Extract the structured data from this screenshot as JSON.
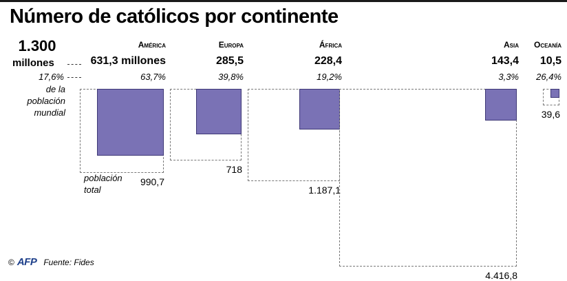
{
  "title": "Número de católicos por continente",
  "total": {
    "value": "1.300",
    "unit": "millones",
    "pct_world": "17,6%",
    "pct_note": [
      "de la",
      "población",
      "mundial"
    ]
  },
  "pop_label": [
    "población",
    "total"
  ],
  "footer": {
    "copyright": "©",
    "logo": "AFP",
    "source": "Fuente: Fides"
  },
  "colors": {
    "catholic_fill": "#7a72b5",
    "catholic_border": "#3d3775",
    "population_border": "#777777"
  },
  "chart_data": {
    "type": "area",
    "title": "Número de católicos por continente",
    "unit": "millones",
    "categories": [
      "América",
      "Europa",
      "África",
      "Asia",
      "Oceanía"
    ],
    "series": [
      {
        "name": "católicos",
        "values": [
          631.3,
          285.5,
          228.4,
          143.4,
          10.5
        ]
      },
      {
        "name": "población total",
        "values": [
          990.7,
          718,
          1187.1,
          4416.8,
          39.6
        ]
      },
      {
        "name": "% de la población",
        "values": [
          63.7,
          39.8,
          19.2,
          3.3,
          26.4
        ]
      }
    ],
    "labels": {
      "names": [
        "América",
        "Europa",
        "África",
        "Asia",
        "Oceanía"
      ],
      "counts": [
        "631,3 millones",
        "285,5",
        "228,4",
        "143,4",
        "10,5"
      ],
      "pcts": [
        "63,7%",
        "39,8%",
        "19,2%",
        "3,3%",
        "26,4%"
      ],
      "pops": [
        "990,7",
        "718",
        "1.187,1",
        "4.416,8",
        "39,6"
      ]
    }
  }
}
